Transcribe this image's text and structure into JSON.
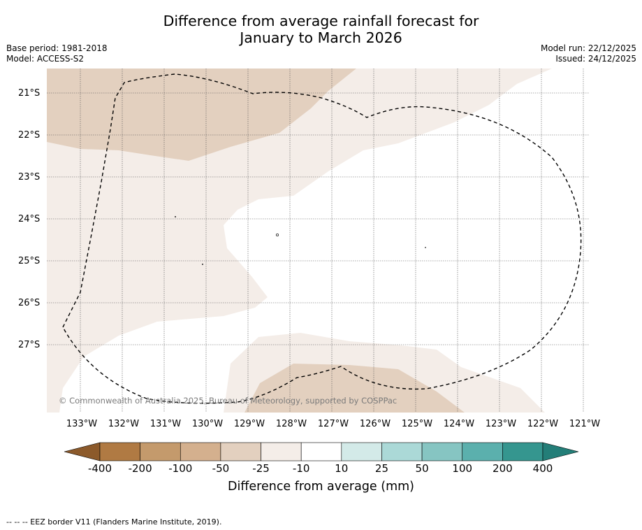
{
  "title": {
    "line1": "Difference from average rainfall forecast for",
    "line2": "January to March 2026"
  },
  "meta_left": {
    "base_period": "Base period: 1981-2018",
    "model": "Model: ACCESS-S2"
  },
  "meta_right": {
    "model_run": "Model run: 22/12/2025",
    "issued": "Issued: 24/12/2025"
  },
  "latitude_labels": [
    "21°S",
    "22°S",
    "23°S",
    "24°S",
    "25°S",
    "26°S",
    "27°S"
  ],
  "longitude_labels": [
    "133°W",
    "132°W",
    "131°W",
    "130°W",
    "129°W",
    "128°W",
    "127°W",
    "126°W",
    "125°W",
    "124°W",
    "123°W",
    "122°W",
    "121°W"
  ],
  "copyright": "© Commonwealth of Australia 2025, Bureau of Meteorology, supported by COSPPac",
  "colorbar": {
    "title": "Difference from average (mm)",
    "labels": [
      "-400",
      "-200",
      "-100",
      "-50",
      "-25",
      "-10",
      "10",
      "25",
      "50",
      "100",
      "200",
      "400"
    ],
    "colors": {
      "extend_low": "#8c5a2b",
      "lt_-200": "#b07a43",
      "-200_-100": "#c49a6c",
      "-100_-50": "#d4b08e",
      "-50_-25": "#e3d0bf",
      "-25_-10": "#f4ede8",
      "-10_10": "#ffffff",
      "10_25": "#d3eae8",
      "25_50": "#abd9d7",
      "50_100": "#86c5c2",
      "100_200": "#5bb0ad",
      "200_400": "#35968f",
      "extend_high": "#237e78"
    }
  },
  "footer": {
    "legend": "--  --  -- EEZ border V11 (Flanders Marine Institute, 2019)."
  }
}
